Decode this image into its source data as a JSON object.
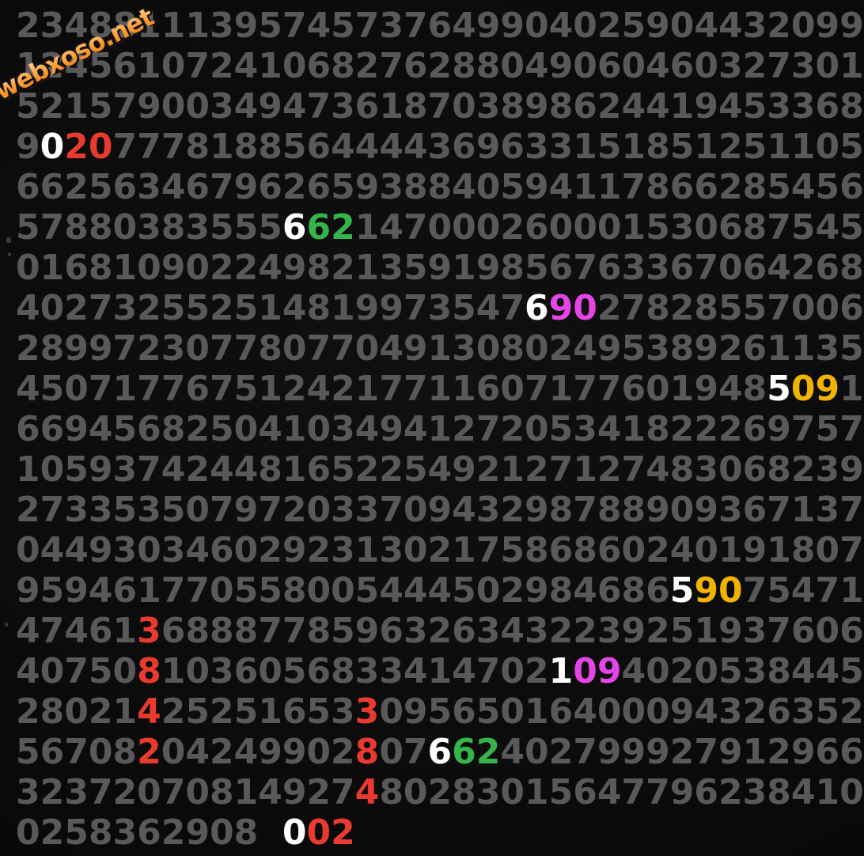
{
  "watermark": {
    "text": "webxoso.net"
  },
  "colors": {
    "gray": "#595959",
    "white": "#ffffff",
    "red": "#e83a2f",
    "green": "#35b44b",
    "magenta": "#e545e5",
    "yellow": "#f0b400",
    "background": "#0b0b0b",
    "watermark_orange": "#ff9d3f"
  },
  "grid": {
    "rows": [
      [
        [
          {
            "t": "23488",
            "c": "gray"
          }
        ],
        [
          {
            "t": "11139",
            "c": "gray"
          }
        ],
        [
          {
            "t": "57457",
            "c": "gray"
          }
        ],
        [
          {
            "t": "37649",
            "c": "gray"
          }
        ],
        [
          {
            "t": "90402",
            "c": "gray"
          }
        ],
        [
          {
            "t": "59044",
            "c": "gray"
          }
        ],
        [
          {
            "t": "32099",
            "c": "gray"
          }
        ]
      ],
      [
        [
          {
            "t": "12456",
            "c": "gray"
          }
        ],
        [
          {
            "t": "10724",
            "c": "gray"
          }
        ],
        [
          {
            "t": "10682",
            "c": "gray"
          }
        ],
        [
          {
            "t": "76288",
            "c": "gray"
          }
        ],
        [
          {
            "t": "04906",
            "c": "gray"
          }
        ],
        [
          {
            "t": "04603",
            "c": "gray"
          }
        ],
        [
          {
            "t": "27301",
            "c": "gray"
          }
        ]
      ],
      [
        [
          {
            "t": "52157",
            "c": "gray"
          }
        ],
        [
          {
            "t": "90034",
            "c": "gray"
          }
        ],
        [
          {
            "t": "94736",
            "c": "gray"
          }
        ],
        [
          {
            "t": "18703",
            "c": "gray"
          }
        ],
        [
          {
            "t": "89862",
            "c": "gray"
          }
        ],
        [
          {
            "t": "44194",
            "c": "gray"
          }
        ],
        [
          {
            "t": "53368",
            "c": "gray"
          }
        ]
      ],
      [
        [
          {
            "t": "9",
            "c": "gray"
          },
          {
            "t": "0",
            "c": "white"
          },
          {
            "t": "20",
            "c": "red"
          },
          {
            "t": "7",
            "c": "gray"
          }
        ],
        [
          {
            "t": "77818",
            "c": "gray"
          }
        ],
        [
          {
            "t": "85644",
            "c": "gray"
          }
        ],
        [
          {
            "t": "44369",
            "c": "gray"
          }
        ],
        [
          {
            "t": "63315",
            "c": "gray"
          }
        ],
        [
          {
            "t": "18512",
            "c": "gray"
          }
        ],
        [
          {
            "t": "51105",
            "c": "gray"
          }
        ]
      ],
      [
        [
          {
            "t": "66256",
            "c": "gray"
          }
        ],
        [
          {
            "t": "34679",
            "c": "gray"
          }
        ],
        [
          {
            "t": "62659",
            "c": "gray"
          }
        ],
        [
          {
            "t": "38840",
            "c": "gray"
          }
        ],
        [
          {
            "t": "59411",
            "c": "gray"
          }
        ],
        [
          {
            "t": "78662",
            "c": "gray"
          }
        ],
        [
          {
            "t": "85456",
            "c": "gray"
          }
        ]
      ],
      [
        [
          {
            "t": "57880",
            "c": "gray"
          }
        ],
        [
          {
            "t": "38355",
            "c": "gray"
          }
        ],
        [
          {
            "t": "5",
            "c": "gray"
          },
          {
            "t": "6",
            "c": "white"
          },
          {
            "t": "62",
            "c": "green"
          },
          {
            "t": "1",
            "c": "gray"
          }
        ],
        [
          {
            "t": "47000",
            "c": "gray"
          }
        ],
        [
          {
            "t": "26000",
            "c": "gray"
          }
        ],
        [
          {
            "t": "15306",
            "c": "gray"
          }
        ],
        [
          {
            "t": "87545",
            "c": "gray"
          }
        ]
      ],
      [
        [
          {
            "t": "01681",
            "c": "gray"
          }
        ],
        [
          {
            "t": "09022",
            "c": "gray"
          }
        ],
        [
          {
            "t": "49821",
            "c": "gray"
          }
        ],
        [
          {
            "t": "35919",
            "c": "gray"
          }
        ],
        [
          {
            "t": "85676",
            "c": "gray"
          }
        ],
        [
          {
            "t": "33670",
            "c": "gray"
          }
        ],
        [
          {
            "t": "64268",
            "c": "gray"
          }
        ]
      ],
      [
        [
          {
            "t": "40273",
            "c": "gray"
          }
        ],
        [
          {
            "t": "25525",
            "c": "gray"
          }
        ],
        [
          {
            "t": "14819",
            "c": "gray"
          }
        ],
        [
          {
            "t": "97354",
            "c": "gray"
          }
        ],
        [
          {
            "t": "7",
            "c": "gray"
          },
          {
            "t": "6",
            "c": "white"
          },
          {
            "t": "90",
            "c": "magenta"
          },
          {
            "t": "2",
            "c": "gray"
          }
        ],
        [
          {
            "t": "78285",
            "c": "gray"
          }
        ],
        [
          {
            "t": "57006",
            "c": "gray"
          }
        ]
      ],
      [
        [
          {
            "t": "28997",
            "c": "gray"
          }
        ],
        [
          {
            "t": "23077",
            "c": "gray"
          }
        ],
        [
          {
            "t": "80770",
            "c": "gray"
          }
        ],
        [
          {
            "t": "49130",
            "c": "gray"
          }
        ],
        [
          {
            "t": "80249",
            "c": "gray"
          }
        ],
        [
          {
            "t": "53892",
            "c": "gray"
          }
        ],
        [
          {
            "t": "61135",
            "c": "gray"
          }
        ]
      ],
      [
        [
          {
            "t": "45071",
            "c": "gray"
          }
        ],
        [
          {
            "t": "77675",
            "c": "gray"
          }
        ],
        [
          {
            "t": "12421",
            "c": "gray"
          }
        ],
        [
          {
            "t": "77116",
            "c": "gray"
          }
        ],
        [
          {
            "t": "07177",
            "c": "gray"
          }
        ],
        [
          {
            "t": "60194",
            "c": "gray"
          }
        ],
        [
          {
            "t": "8",
            "c": "gray"
          },
          {
            "t": "5",
            "c": "white"
          },
          {
            "t": "09",
            "c": "yellow"
          },
          {
            "t": "1",
            "c": "gray"
          }
        ]
      ],
      [
        [
          {
            "t": "66945",
            "c": "gray"
          }
        ],
        [
          {
            "t": "68250",
            "c": "gray"
          }
        ],
        [
          {
            "t": "41034",
            "c": "gray"
          }
        ],
        [
          {
            "t": "94127",
            "c": "gray"
          }
        ],
        [
          {
            "t": "20534",
            "c": "gray"
          }
        ],
        [
          {
            "t": "18222",
            "c": "gray"
          }
        ],
        [
          {
            "t": "69757",
            "c": "gray"
          }
        ]
      ],
      [
        [
          {
            "t": "10593",
            "c": "gray"
          }
        ],
        [
          {
            "t": "74244",
            "c": "gray"
          }
        ],
        [
          {
            "t": "81652",
            "c": "gray"
          }
        ],
        [
          {
            "t": "25492",
            "c": "gray"
          }
        ],
        [
          {
            "t": "12712",
            "c": "gray"
          }
        ],
        [
          {
            "t": "74830",
            "c": "gray"
          }
        ],
        [
          {
            "t": "68239",
            "c": "gray"
          }
        ]
      ],
      [
        [
          {
            "t": "27335",
            "c": "gray"
          }
        ],
        [
          {
            "t": "35079",
            "c": "gray"
          }
        ],
        [
          {
            "t": "72033",
            "c": "gray"
          }
        ],
        [
          {
            "t": "70943",
            "c": "gray"
          }
        ],
        [
          {
            "t": "29878",
            "c": "gray"
          }
        ],
        [
          {
            "t": "89093",
            "c": "gray"
          }
        ],
        [
          {
            "t": "67137",
            "c": "gray"
          }
        ]
      ],
      [
        [
          {
            "t": "04493",
            "c": "gray"
          }
        ],
        [
          {
            "t": "03460",
            "c": "gray"
          }
        ],
        [
          {
            "t": "29231",
            "c": "gray"
          }
        ],
        [
          {
            "t": "30217",
            "c": "gray"
          }
        ],
        [
          {
            "t": "58686",
            "c": "gray"
          }
        ],
        [
          {
            "t": "02401",
            "c": "gray"
          }
        ],
        [
          {
            "t": "91807",
            "c": "gray"
          }
        ]
      ],
      [
        [
          {
            "t": "95946",
            "c": "gray"
          }
        ],
        [
          {
            "t": "17705",
            "c": "gray"
          }
        ],
        [
          {
            "t": "58005",
            "c": "gray"
          }
        ],
        [
          {
            "t": "44450",
            "c": "gray"
          }
        ],
        [
          {
            "t": "29846",
            "c": "gray"
          }
        ],
        [
          {
            "t": "86",
            "c": "gray"
          },
          {
            "t": "5",
            "c": "white"
          },
          {
            "t": "90",
            "c": "yellow"
          }
        ],
        [
          {
            "t": "75471",
            "c": "gray"
          }
        ]
      ],
      [
        [
          {
            "t": "47461",
            "c": "gray"
          }
        ],
        [
          {
            "t": "3",
            "c": "red"
          },
          {
            "t": "6888",
            "c": "gray"
          }
        ],
        [
          {
            "t": "77859",
            "c": "gray"
          }
        ],
        [
          {
            "t": "63263",
            "c": "gray"
          }
        ],
        [
          {
            "t": "43223",
            "c": "gray"
          }
        ],
        [
          {
            "t": "92519",
            "c": "gray"
          }
        ],
        [
          {
            "t": "37606",
            "c": "gray"
          }
        ]
      ],
      [
        [
          {
            "t": "40750",
            "c": "gray"
          }
        ],
        [
          {
            "t": "8",
            "c": "red"
          },
          {
            "t": "1036",
            "c": "gray"
          }
        ],
        [
          {
            "t": "05683",
            "c": "gray"
          }
        ],
        [
          {
            "t": "34147",
            "c": "gray"
          }
        ],
        [
          {
            "t": "02",
            "c": "gray"
          },
          {
            "t": "1",
            "c": "white"
          },
          {
            "t": "09",
            "c": "magenta"
          }
        ],
        [
          {
            "t": "40205",
            "c": "gray"
          }
        ],
        [
          {
            "t": "38445",
            "c": "gray"
          }
        ]
      ],
      [
        [
          {
            "t": "28021",
            "c": "gray"
          }
        ],
        [
          {
            "t": "4",
            "c": "red"
          },
          {
            "t": "2525",
            "c": "gray"
          }
        ],
        [
          {
            "t": "1653",
            "c": "gray"
          },
          {
            "t": "3",
            "c": "red"
          }
        ],
        [
          {
            "t": "09565",
            "c": "gray"
          }
        ],
        [
          {
            "t": "01640",
            "c": "gray"
          }
        ],
        [
          {
            "t": "00943",
            "c": "gray"
          }
        ],
        [
          {
            "t": "26352",
            "c": "gray"
          }
        ]
      ],
      [
        [
          {
            "t": "56708",
            "c": "gray"
          }
        ],
        [
          {
            "t": "2",
            "c": "red"
          },
          {
            "t": "0424",
            "c": "gray"
          }
        ],
        [
          {
            "t": "9902",
            "c": "gray"
          },
          {
            "t": "8",
            "c": "red"
          }
        ],
        [
          {
            "t": "07",
            "c": "gray"
          },
          {
            "t": "6",
            "c": "white"
          },
          {
            "t": "62",
            "c": "green"
          }
        ],
        [
          {
            "t": "40279",
            "c": "gray"
          }
        ],
        [
          {
            "t": "99279",
            "c": "gray"
          }
        ],
        [
          {
            "t": "12966",
            "c": "gray"
          }
        ]
      ],
      [
        [
          {
            "t": "32372",
            "c": "gray"
          }
        ],
        [
          {
            "t": "07081",
            "c": "gray"
          }
        ],
        [
          {
            "t": "4927",
            "c": "gray"
          },
          {
            "t": "4",
            "c": "red"
          }
        ],
        [
          {
            "t": "80283",
            "c": "gray"
          }
        ],
        [
          {
            "t": "01564",
            "c": "gray"
          }
        ],
        [
          {
            "t": "77962",
            "c": "gray"
          }
        ],
        [
          {
            "t": "38410",
            "c": "gray"
          }
        ]
      ],
      [
        [
          {
            "t": "02583",
            "c": "gray"
          }
        ],
        [
          {
            "t": "62908",
            "c": "gray"
          }
        ],
        [
          {
            "t": "0",
            "c": "white"
          },
          {
            "t": "02",
            "c": "red"
          }
        ],
        [],
        [],
        [],
        []
      ]
    ]
  }
}
